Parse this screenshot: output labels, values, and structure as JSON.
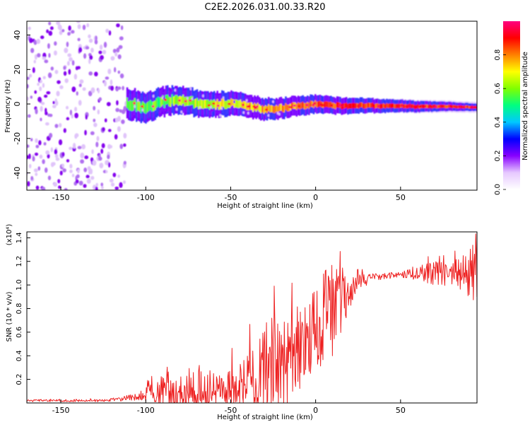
{
  "title": "C2E2.2026.031.00.33.R20",
  "chart_data": [
    {
      "id": "spectrogram",
      "type": "heatmap",
      "xlabel": "Height of straight line (km)",
      "ylabel": "Frequency (Hz)",
      "xlim": [
        -170,
        95
      ],
      "ylim": [
        -50,
        48
      ],
      "x_ticks": [
        -150,
        -100,
        -50,
        0,
        50
      ],
      "y_ticks": [
        -40,
        -20,
        0,
        20,
        40
      ],
      "ridge": [
        {
          "x": -115,
          "f": 1.0
        },
        {
          "x": -100,
          "f": -2.0
        },
        {
          "x": -90,
          "f": 1.5
        },
        {
          "x": -80,
          "f": 2.5
        },
        {
          "x": -70,
          "f": 0.5
        },
        {
          "x": -60,
          "f": -0.5
        },
        {
          "x": -50,
          "f": 0.5
        },
        {
          "x": -40,
          "f": -1.5
        },
        {
          "x": -30,
          "f": -3.0
        },
        {
          "x": -20,
          "f": -2.5
        },
        {
          "x": -10,
          "f": -1.0
        },
        {
          "x": 0,
          "f": 0.0
        },
        {
          "x": 10,
          "f": -1.0
        },
        {
          "x": 20,
          "f": -1.0
        },
        {
          "x": 40,
          "f": -1.0
        },
        {
          "x": 60,
          "f": -1.5
        },
        {
          "x": 80,
          "f": -1.5
        },
        {
          "x": 95,
          "f": -2.0
        }
      ],
      "colorbar": {
        "label": "Normalized spectral amplitude",
        "range": [
          0,
          1
        ],
        "ticks": [
          "0.0",
          "0.2",
          "0.4",
          "0.6",
          "0.8"
        ],
        "tick_values": [
          0.0,
          0.2,
          0.4,
          0.6,
          0.8
        ],
        "colors": [
          "#ffffff",
          "#e6c8ff",
          "#8800ff",
          "#0000ff",
          "#00c8ff",
          "#00ff80",
          "#80ff00",
          "#ffff00",
          "#ff8000",
          "#ff0000",
          "#ff0080"
        ]
      }
    },
    {
      "id": "snr",
      "type": "line",
      "xlabel": "Height of straight line (km)",
      "ylabel": "SNR (10 * v/v)",
      "y_multiplier": "(x10⁴)",
      "xlim": [
        -170,
        95
      ],
      "ylim": [
        0,
        1.45
      ],
      "x_ticks": [
        -150,
        -100,
        -50,
        0,
        50
      ],
      "y_ticks": [
        "0.2",
        "0.4",
        "0.6",
        "0.8",
        "1.0",
        "1.2",
        "1.4"
      ],
      "y_tick_values": [
        0.2,
        0.4,
        0.6,
        0.8,
        1.0,
        1.2,
        1.4
      ],
      "color": "#ee2222",
      "series": [
        {
          "name": "SNR",
          "envelope": [
            {
              "x": -170,
              "base": 0.02,
              "amp": 0.01
            },
            {
              "x": -125,
              "base": 0.02,
              "amp": 0.01
            },
            {
              "x": -105,
              "base": 0.05,
              "amp": 0.03
            },
            {
              "x": -95,
              "base": 0.08,
              "amp": 0.1
            },
            {
              "x": -90,
              "base": 0.1,
              "amp": 0.15
            },
            {
              "x": -80,
              "base": 0.12,
              "amp": 0.18
            },
            {
              "x": -60,
              "base": 0.12,
              "amp": 0.18
            },
            {
              "x": -45,
              "base": 0.15,
              "amp": 0.2
            },
            {
              "x": -38,
              "base": 0.2,
              "amp": 0.4
            },
            {
              "x": -30,
              "base": 0.3,
              "amp": 0.4
            },
            {
              "x": -20,
              "base": 0.4,
              "amp": 0.45
            },
            {
              "x": -10,
              "base": 0.5,
              "amp": 0.4
            },
            {
              "x": 0,
              "base": 0.6,
              "amp": 0.35
            },
            {
              "x": 8,
              "base": 0.75,
              "amp": 0.45
            },
            {
              "x": 15,
              "base": 0.85,
              "amp": 0.25
            },
            {
              "x": 20,
              "base": 0.95,
              "amp": 0.15
            },
            {
              "x": 25,
              "base": 1.02,
              "amp": 0.07
            },
            {
              "x": 35,
              "base": 1.07,
              "amp": 0.03
            },
            {
              "x": 50,
              "base": 1.09,
              "amp": 0.025
            },
            {
              "x": 70,
              "base": 1.1,
              "amp": 0.1
            },
            {
              "x": 85,
              "base": 1.1,
              "amp": 0.15
            },
            {
              "x": 95,
              "base": 1.15,
              "amp": 0.3
            }
          ]
        }
      ]
    }
  ]
}
